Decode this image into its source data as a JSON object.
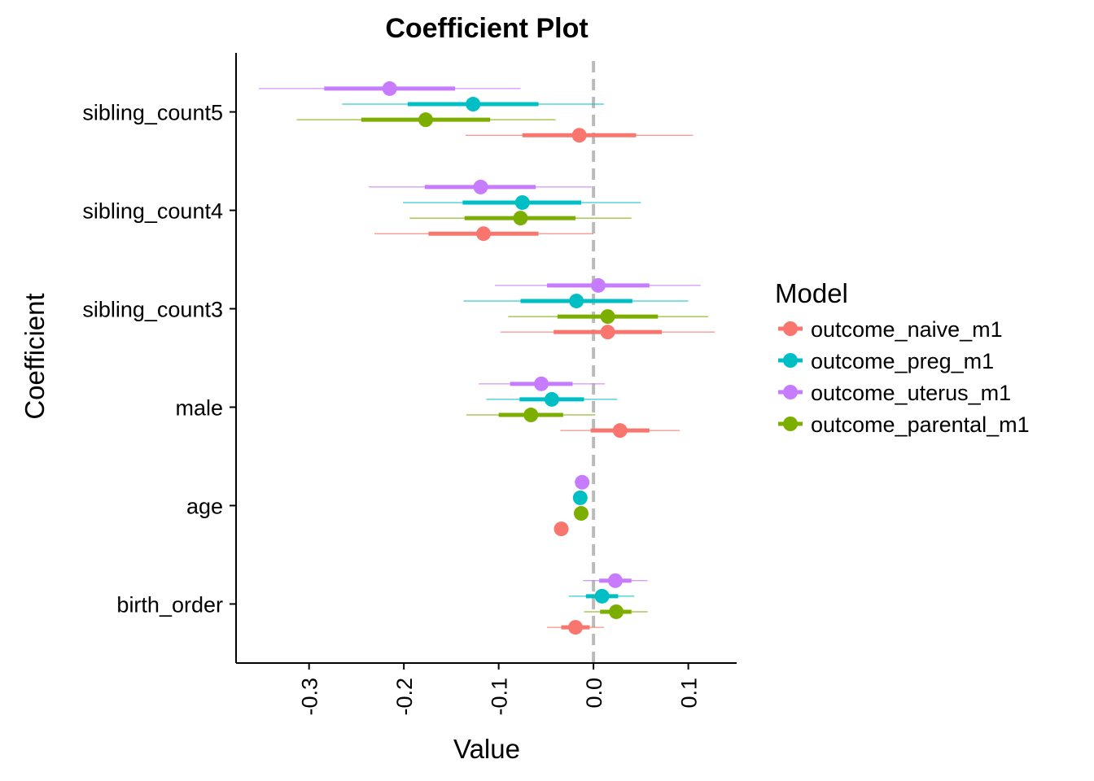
{
  "chart_data": {
    "type": "coefficient-plot",
    "title": "Coefficient Plot",
    "xlabel": "Value",
    "ylabel": "Coefficient",
    "xlim": [
      -0.377,
      0.151
    ],
    "x_ticks": [
      -0.3,
      -0.2,
      -0.1,
      0.0,
      0.1
    ],
    "x_tick_labels": [
      "-0.3",
      "-0.2",
      "-0.1",
      "0.0",
      "0.1"
    ],
    "zero_line": 0.0,
    "grid": false,
    "categories": [
      "sibling_count5",
      "sibling_count4",
      "sibling_count3",
      "male",
      "age",
      "birth_order"
    ],
    "legend": {
      "title": "Model",
      "position": "right"
    },
    "series": [
      {
        "name": "outcome_uterus_m1",
        "color": "#C77CFF",
        "offset": 0.237,
        "points": [
          {
            "coef": "sibling_count5",
            "est": -0.215,
            "inner": [
              -0.284,
              -0.146
            ],
            "outer": [
              -0.353,
              -0.077
            ]
          },
          {
            "coef": "sibling_count4",
            "est": -0.119,
            "inner": [
              -0.178,
              -0.061
            ],
            "outer": [
              -0.237,
              -0.002
            ]
          },
          {
            "coef": "sibling_count3",
            "est": 0.005,
            "inner": [
              -0.049,
              0.059
            ],
            "outer": [
              -0.104,
              0.113
            ]
          },
          {
            "coef": "male",
            "est": -0.055,
            "inner": [
              -0.088,
              -0.022
            ],
            "outer": [
              -0.121,
              0.012
            ]
          },
          {
            "coef": "age",
            "est": -0.012,
            "inner": [
              -0.014,
              -0.01
            ],
            "outer": [
              -0.016,
              -0.008
            ]
          },
          {
            "coef": "birth_order",
            "est": 0.023,
            "inner": [
              0.006,
              0.04
            ],
            "outer": [
              -0.011,
              0.057
            ]
          }
        ]
      },
      {
        "name": "outcome_preg_m1",
        "color": "#00BFC4",
        "offset": 0.079,
        "points": [
          {
            "coef": "sibling_count5",
            "est": -0.127,
            "inner": [
              -0.196,
              -0.058
            ],
            "outer": [
              -0.265,
              0.011
            ]
          },
          {
            "coef": "sibling_count4",
            "est": -0.075,
            "inner": [
              -0.138,
              -0.013
            ],
            "outer": [
              -0.201,
              0.05
            ]
          },
          {
            "coef": "sibling_count3",
            "est": -0.018,
            "inner": [
              -0.077,
              0.041
            ],
            "outer": [
              -0.137,
              0.1
            ]
          },
          {
            "coef": "male",
            "est": -0.044,
            "inner": [
              -0.078,
              -0.01
            ],
            "outer": [
              -0.113,
              0.025
            ]
          },
          {
            "coef": "age",
            "est": -0.014,
            "inner": [
              -0.016,
              -0.012
            ],
            "outer": [
              -0.018,
              -0.01
            ]
          },
          {
            "coef": "birth_order",
            "est": 0.009,
            "inner": [
              -0.008,
              0.026
            ],
            "outer": [
              -0.026,
              0.043
            ]
          }
        ]
      },
      {
        "name": "outcome_parental_m1",
        "color": "#7CAE00",
        "offset": -0.079,
        "points": [
          {
            "coef": "sibling_count5",
            "est": -0.177,
            "inner": [
              -0.245,
              -0.109
            ],
            "outer": [
              -0.313,
              -0.04
            ]
          },
          {
            "coef": "sibling_count4",
            "est": -0.077,
            "inner": [
              -0.136,
              -0.019
            ],
            "outer": [
              -0.194,
              0.04
            ]
          },
          {
            "coef": "sibling_count3",
            "est": 0.015,
            "inner": [
              -0.038,
              0.068
            ],
            "outer": [
              -0.09,
              0.121
            ]
          },
          {
            "coef": "male",
            "est": -0.066,
            "inner": [
              -0.1,
              -0.032
            ],
            "outer": [
              -0.134,
              0.002
            ]
          },
          {
            "coef": "age",
            "est": -0.013,
            "inner": [
              -0.015,
              -0.011
            ],
            "outer": [
              -0.017,
              -0.009
            ]
          },
          {
            "coef": "birth_order",
            "est": 0.024,
            "inner": [
              0.007,
              0.04
            ],
            "outer": [
              -0.01,
              0.057
            ]
          }
        ]
      },
      {
        "name": "outcome_naive_m1",
        "color": "#F8766D",
        "offset": -0.237,
        "points": [
          {
            "coef": "sibling_count5",
            "est": -0.015,
            "inner": [
              -0.075,
              0.045
            ],
            "outer": [
              -0.135,
              0.105
            ]
          },
          {
            "coef": "sibling_count4",
            "est": -0.116,
            "inner": [
              -0.174,
              -0.058
            ],
            "outer": [
              -0.231,
              0.0
            ]
          },
          {
            "coef": "sibling_count3",
            "est": 0.015,
            "inner": [
              -0.042,
              0.072
            ],
            "outer": [
              -0.098,
              0.128
            ]
          },
          {
            "coef": "male",
            "est": 0.028,
            "inner": [
              -0.003,
              0.059
            ],
            "outer": [
              -0.035,
              0.091
            ]
          },
          {
            "coef": "age",
            "est": -0.034,
            "inner": [
              -0.036,
              -0.032
            ],
            "outer": [
              -0.038,
              -0.03
            ]
          },
          {
            "coef": "birth_order",
            "est": -0.019,
            "inner": [
              -0.034,
              -0.004
            ],
            "outer": [
              -0.049,
              0.011
            ]
          }
        ]
      }
    ],
    "legend_order": [
      "outcome_naive_m1",
      "outcome_preg_m1",
      "outcome_uterus_m1",
      "outcome_parental_m1"
    ]
  }
}
